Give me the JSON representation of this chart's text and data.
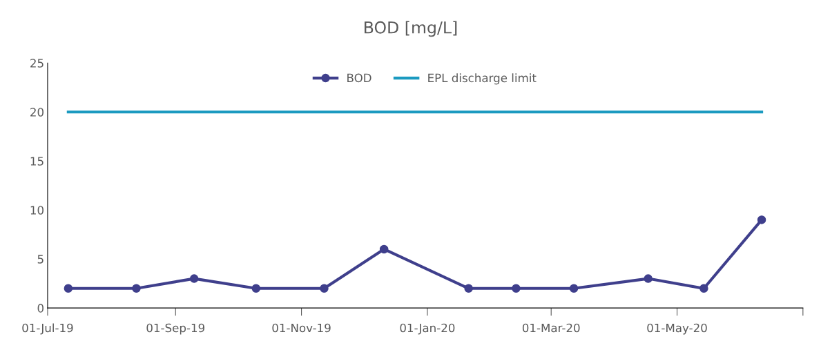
{
  "chart_data": {
    "type": "line",
    "title": "BOD [mg/L]",
    "x": [
      "2019-07-11",
      "2019-08-13",
      "2019-09-10",
      "2019-10-10",
      "2019-11-12",
      "2019-12-11",
      "2020-01-21",
      "2020-02-13",
      "2020-03-12",
      "2020-04-17",
      "2020-05-14",
      "2020-06-11"
    ],
    "series": [
      {
        "name": "BOD",
        "color": "#3f3f8c",
        "marker": "circle",
        "values": [
          2,
          2,
          3,
          2,
          2,
          6,
          2,
          2,
          2,
          3,
          2,
          9
        ]
      },
      {
        "name": "EPL discharge limit",
        "color": "#1b9ac0",
        "marker": "none",
        "x": [
          "2019-07-11",
          "2020-06-11"
        ],
        "values": [
          20,
          20
        ]
      }
    ],
    "xlim": [
      "2019-07-01",
      "2020-07-01"
    ],
    "xticks": [
      {
        "value": "2019-07-01",
        "label": "01-Jul-19"
      },
      {
        "value": "2019-09-01",
        "label": "01-Sep-19"
      },
      {
        "value": "2019-11-01",
        "label": "01-Nov-19"
      },
      {
        "value": "2020-01-01",
        "label": "01-Jan-20"
      },
      {
        "value": "2020-03-01",
        "label": "01-Mar-20"
      },
      {
        "value": "2020-05-01",
        "label": "01-May-20"
      },
      {
        "value": "2020-07-01",
        "label": null
      }
    ],
    "ylim": [
      0,
      25
    ],
    "yticks": [
      0,
      5,
      10,
      15,
      20,
      25
    ],
    "grid": false,
    "legend": "top",
    "line_style": "solid"
  }
}
